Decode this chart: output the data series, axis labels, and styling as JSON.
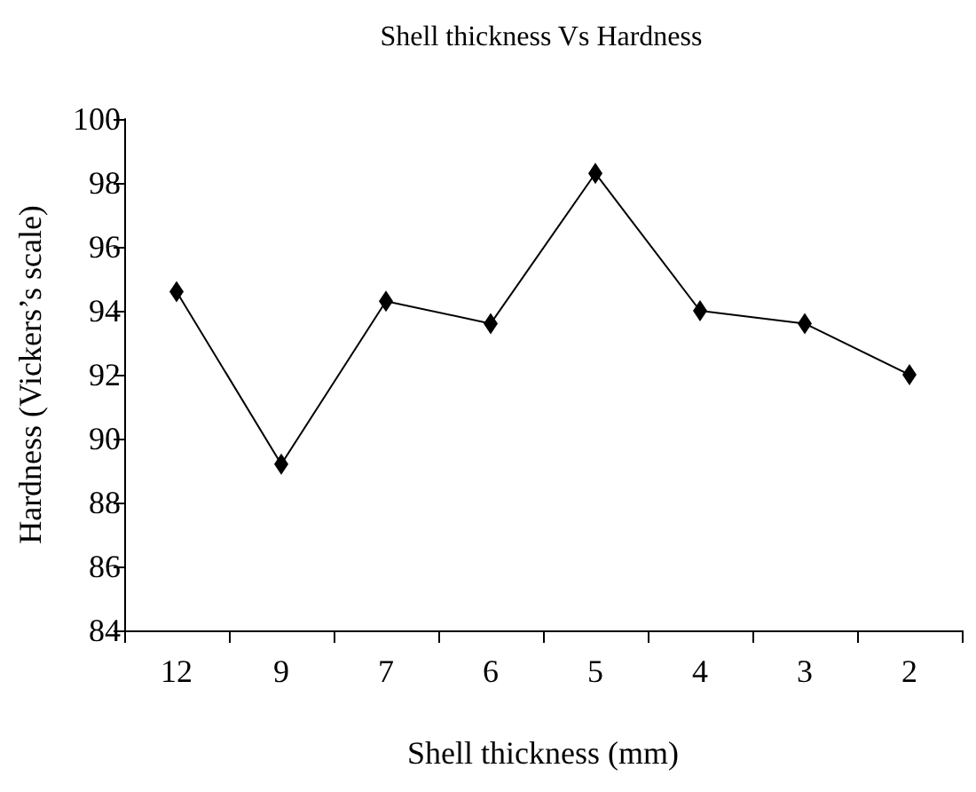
{
  "chart_data": {
    "type": "line",
    "title": "Shell thickness Vs Hardness",
    "xlabel": "Shell thickness (mm)",
    "ylabel": "Hardness (Vickers’s scale)",
    "categories": [
      "12",
      "9",
      "7",
      "6",
      "5",
      "4",
      "3",
      "2"
    ],
    "series": [
      {
        "color": "#000000",
        "values": [
          94.6,
          89.2,
          94.3,
          93.6,
          98.3,
          94.0,
          93.6,
          92.0
        ]
      }
    ],
    "ylim": [
      84,
      100
    ],
    "yticks": [
      84,
      86,
      88,
      90,
      92,
      94,
      96,
      98,
      100
    ],
    "grid": false,
    "marker": "diamond",
    "line_style": "solid"
  }
}
